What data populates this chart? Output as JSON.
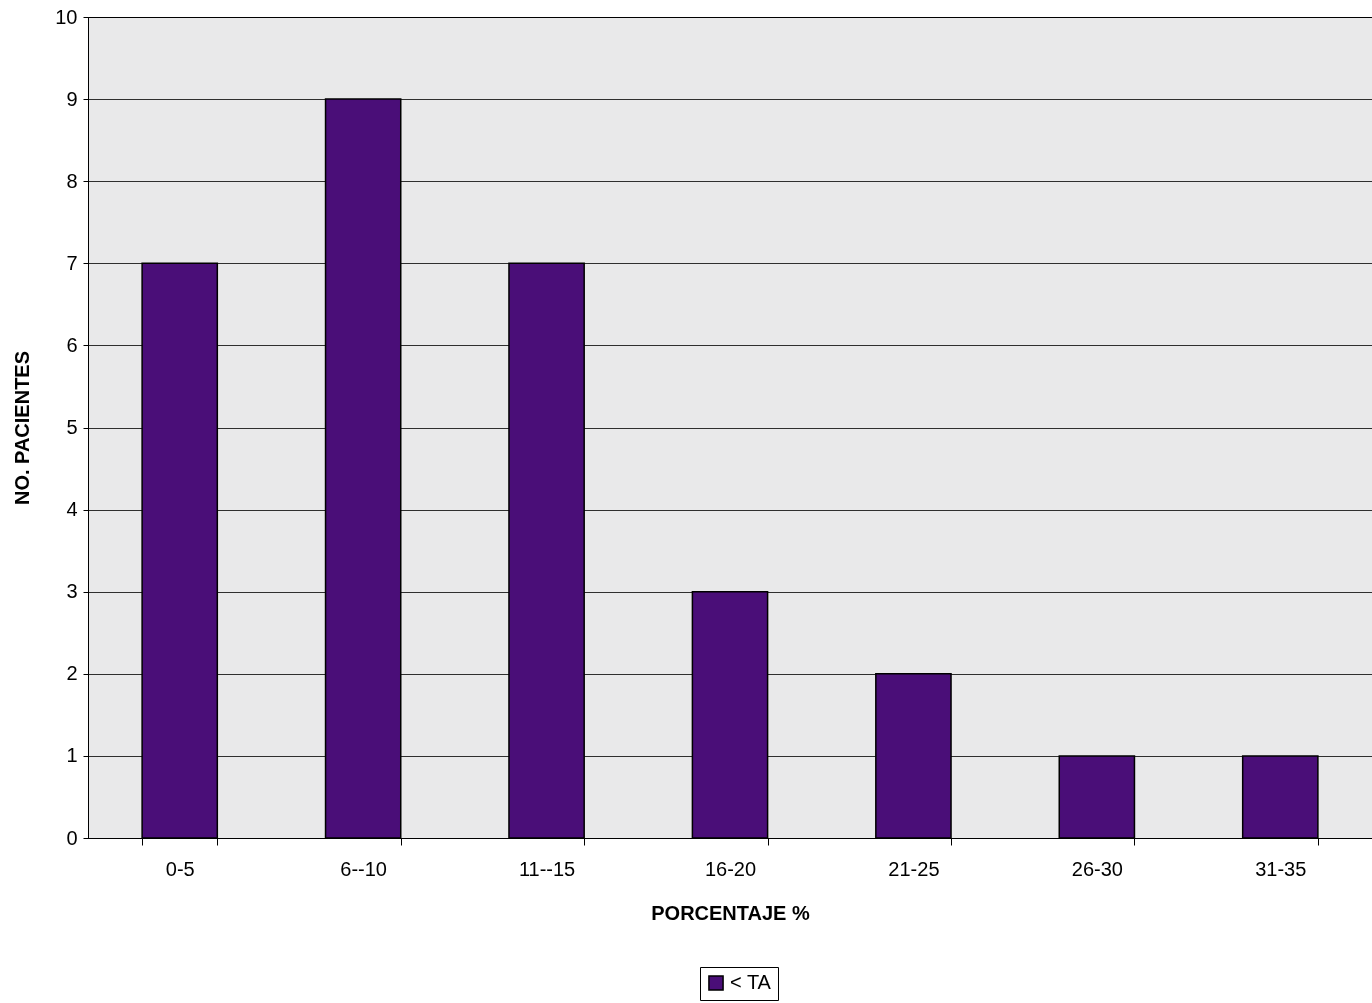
{
  "chart_data": {
    "type": "bar",
    "xlabel": "PORCENTAJE %",
    "ylabel": "NO. PACIENTES",
    "categories": [
      "0-5",
      "6--10",
      "11--15",
      "16-20",
      "21-25",
      "26-30",
      "31-35"
    ],
    "series": [
      {
        "name": "< TA",
        "color": "#4a0e78",
        "values": [
          7,
          9,
          7,
          3,
          2,
          1,
          1
        ]
      }
    ],
    "ylim": [
      0,
      10
    ],
    "yticks": [
      0,
      1,
      2,
      3,
      4,
      5,
      6,
      7,
      8,
      9,
      10
    ],
    "grid": "y",
    "legend": "bottom"
  }
}
